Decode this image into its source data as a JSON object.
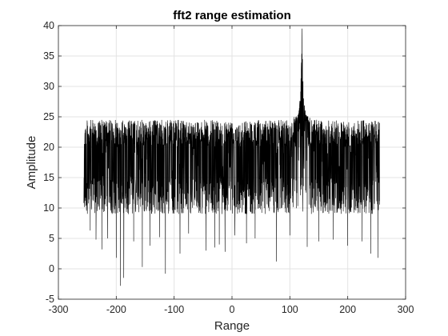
{
  "chart_data": {
    "type": "line",
    "title": "fft2 range estimation",
    "xlabel": "Range",
    "ylabel": "Amplitude",
    "xlim": [
      -300,
      300
    ],
    "ylim": [
      -5,
      40
    ],
    "xticks": [
      -300,
      -200,
      -100,
      0,
      100,
      200,
      300
    ],
    "yticks": [
      -5,
      0,
      5,
      10,
      15,
      20,
      25,
      30,
      35,
      40
    ],
    "grid": true,
    "line_color": "#000000",
    "x_extent": [
      -256,
      255
    ],
    "noise_floor_band": [
      9,
      24.5
    ],
    "noise_min_spikes": [
      {
        "x": -245,
        "y": 6.3
      },
      {
        "x": -235,
        "y": 4.8
      },
      {
        "x": -225,
        "y": 3.2
      },
      {
        "x": -215,
        "y": 5.0
      },
      {
        "x": -200,
        "y": 1.8
      },
      {
        "x": -193,
        "y": -2.8
      },
      {
        "x": -187,
        "y": -1.5
      },
      {
        "x": -170,
        "y": 4.5
      },
      {
        "x": -155,
        "y": 0.3
      },
      {
        "x": -142,
        "y": 3.8
      },
      {
        "x": -125,
        "y": 5.2
      },
      {
        "x": -115,
        "y": -0.8
      },
      {
        "x": -90,
        "y": 2.5
      },
      {
        "x": -75,
        "y": 5.8
      },
      {
        "x": -45,
        "y": 3.0
      },
      {
        "x": -30,
        "y": 3.5
      },
      {
        "x": -22,
        "y": 4.0
      },
      {
        "x": -12,
        "y": 2.8
      },
      {
        "x": 5,
        "y": 5.5
      },
      {
        "x": 25,
        "y": 4.2
      },
      {
        "x": 40,
        "y": 5.0
      },
      {
        "x": 77,
        "y": 1.2
      },
      {
        "x": 100,
        "y": 5.5
      },
      {
        "x": 130,
        "y": 3.6
      },
      {
        "x": 150,
        "y": 4.5
      },
      {
        "x": 175,
        "y": 4.8
      },
      {
        "x": 200,
        "y": 3.8
      },
      {
        "x": 225,
        "y": 4.5
      },
      {
        "x": 240,
        "y": 2.5
      },
      {
        "x": 252,
        "y": 1.8
      }
    ],
    "peak": {
      "x": 121,
      "y": 39.5,
      "base_y": 25,
      "half_width": 14
    }
  }
}
